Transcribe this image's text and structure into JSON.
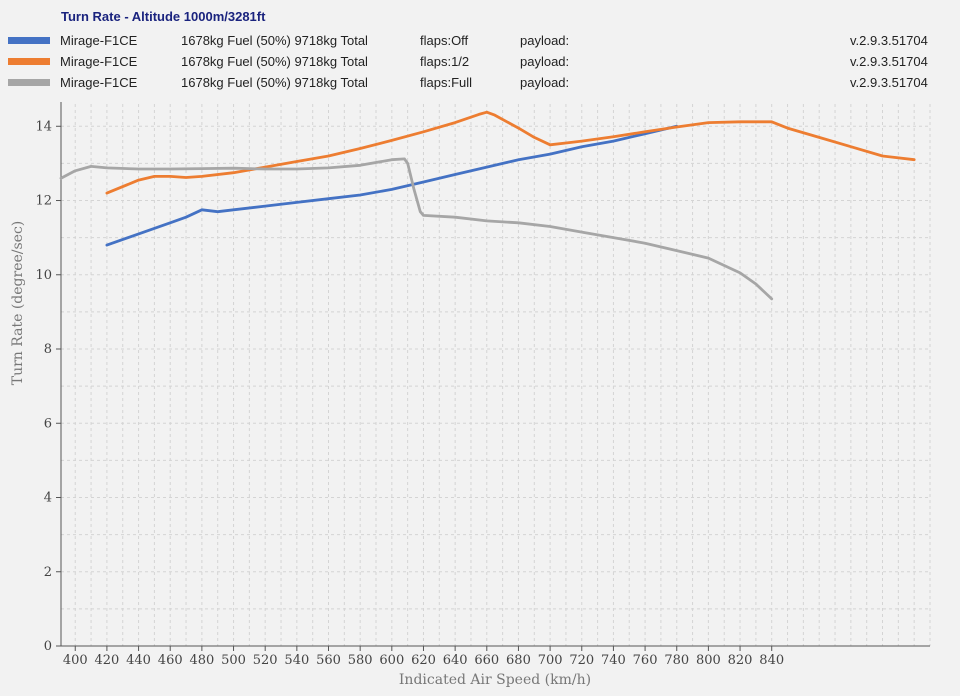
{
  "chart_data": {
    "type": "line",
    "title": "Turn Rate - Altitude 1000m/3281ft",
    "xlabel": "Indicated Air Speed (km/h)",
    "ylabel": "Turn Rate (degree/sec)",
    "xlim": [
      391,
      940
    ],
    "ylim": [
      0,
      14.6
    ],
    "xticks": [
      400,
      420,
      440,
      460,
      480,
      500,
      520,
      540,
      560,
      580,
      600,
      620,
      640,
      660,
      680,
      700,
      720,
      740,
      760,
      780,
      800,
      820,
      840
    ],
    "yticks": [
      0,
      2,
      4,
      6,
      8,
      10,
      12,
      14
    ],
    "grid": true,
    "legend_position": "top",
    "series": [
      {
        "name": "Mirage-F1CE",
        "color": "#4472c4",
        "fuel": "1678kg Fuel (50%) 9718kg Total",
        "flaps": "flaps:Off",
        "payload": "payload:",
        "version": "v.2.9.3.51704",
        "x": [
          420,
          440,
          460,
          470,
          480,
          490,
          500,
          520,
          540,
          560,
          580,
          600,
          620,
          640,
          660,
          680,
          700,
          720,
          740,
          760,
          780
        ],
        "y": [
          10.8,
          11.1,
          11.4,
          11.55,
          11.75,
          11.7,
          11.75,
          11.85,
          11.95,
          12.05,
          12.15,
          12.3,
          12.5,
          12.7,
          12.9,
          13.1,
          13.25,
          13.45,
          13.6,
          13.8,
          14.0
        ]
      },
      {
        "name": "Mirage-F1CE",
        "color": "#ed7d31",
        "fuel": "1678kg Fuel (50%) 9718kg Total",
        "flaps": "flaps:1/2",
        "payload": "payload:",
        "version": "v.2.9.3.51704",
        "x": [
          420,
          440,
          450,
          460,
          470,
          480,
          500,
          520,
          540,
          560,
          580,
          600,
          620,
          640,
          655,
          660,
          665,
          680,
          690,
          700,
          710,
          720,
          740,
          760,
          780,
          800,
          820,
          840,
          850,
          870,
          890,
          910,
          930
        ],
        "y": [
          12.2,
          12.55,
          12.65,
          12.65,
          12.62,
          12.65,
          12.75,
          12.9,
          13.05,
          13.2,
          13.4,
          13.62,
          13.85,
          14.1,
          14.32,
          14.38,
          14.3,
          13.95,
          13.7,
          13.5,
          13.55,
          13.6,
          13.72,
          13.85,
          13.98,
          14.1,
          14.12,
          14.12,
          13.95,
          13.7,
          13.45,
          13.2,
          13.1
        ]
      },
      {
        "name": "Mirage-F1CE",
        "color": "#a6a6a6",
        "fuel": "1678kg Fuel (50%) 9718kg Total",
        "flaps": "flaps:Full",
        "payload": "payload:",
        "version": "v.2.9.3.51704",
        "x": [
          391,
          400,
          410,
          420,
          440,
          460,
          480,
          500,
          520,
          540,
          560,
          580,
          600,
          608,
          610,
          614,
          618,
          620,
          640,
          660,
          680,
          700,
          720,
          740,
          760,
          780,
          800,
          820,
          830,
          840
        ],
        "y": [
          12.6,
          12.8,
          12.92,
          12.88,
          12.85,
          12.85,
          12.86,
          12.87,
          12.85,
          12.85,
          12.88,
          12.95,
          13.1,
          13.12,
          13.0,
          12.3,
          11.7,
          11.6,
          11.55,
          11.45,
          11.4,
          11.3,
          11.15,
          11.0,
          10.85,
          10.65,
          10.45,
          10.05,
          9.75,
          9.35
        ]
      }
    ]
  }
}
